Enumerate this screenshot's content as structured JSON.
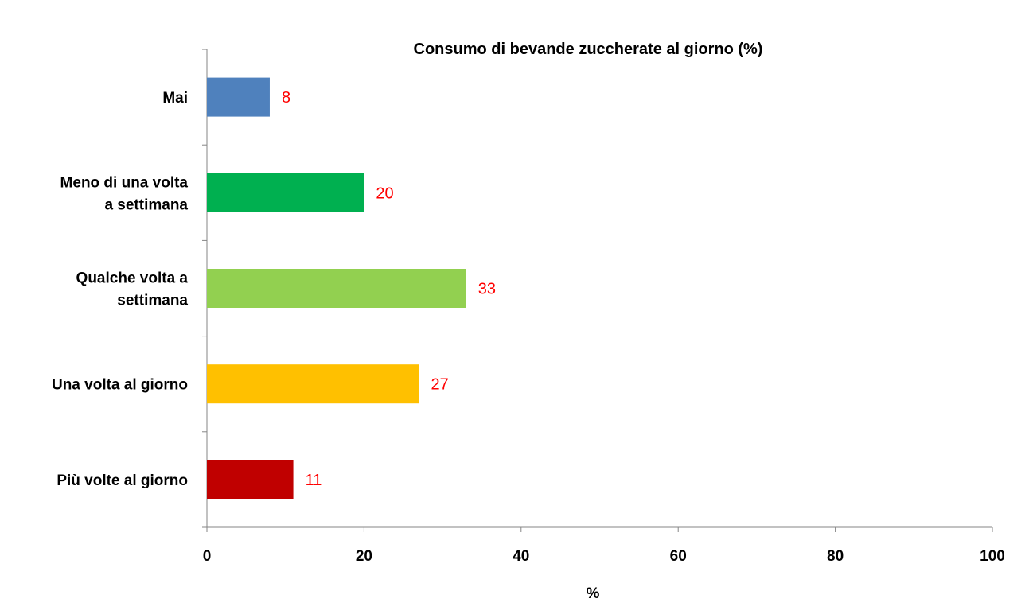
{
  "chart_data": {
    "type": "bar",
    "orientation": "horizontal",
    "title": "Consumo di bevande zuccherate al giorno (%)",
    "xlabel": "%",
    "ylabel": "",
    "xlim": [
      0,
      100
    ],
    "x_ticks": [
      0,
      20,
      40,
      60,
      80,
      100
    ],
    "grid": false,
    "legend": "none",
    "categories": [
      [
        "Mai"
      ],
      [
        "Meno di una volta",
        "a settimana"
      ],
      [
        "Qualche volta a",
        "settimana"
      ],
      [
        "Una volta al giorno"
      ],
      [
        "Più volte al giorno"
      ]
    ],
    "values": [
      8,
      20,
      33,
      27,
      11
    ],
    "colors": [
      "#4f81bd",
      "#00b050",
      "#92d050",
      "#ffc000",
      "#c00000"
    ],
    "data_label_color": "#ff0000"
  }
}
